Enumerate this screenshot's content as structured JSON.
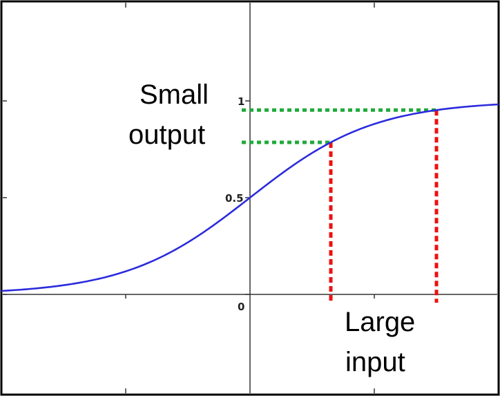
{
  "chart_data": {
    "type": "line",
    "title": "",
    "xlabel": "",
    "ylabel": "",
    "xlim": [
      -4,
      4
    ],
    "ylim": [
      -0.5,
      1.5
    ],
    "grid": false,
    "series": [
      {
        "function": "sigmoid",
        "color": "#2b2bdd",
        "x": [
          -4,
          -3,
          -2,
          -1,
          0,
          1,
          2,
          3,
          4
        ],
        "y": [
          0.018,
          0.047,
          0.119,
          0.269,
          0.5,
          0.731,
          0.881,
          0.953,
          0.982
        ]
      }
    ],
    "y_tick_labels": [
      "0",
      "0.5",
      "1"
    ],
    "y_tick_values": [
      0,
      0.5,
      1
    ],
    "annotations": [
      {
        "line1": "Small",
        "line2": "output"
      },
      {
        "line1": "Large",
        "line2": "input"
      }
    ],
    "guides": {
      "green_color": "#1faa3a",
      "red_color": "#ee1111",
      "x_values": [
        1.3,
        3.0
      ]
    }
  }
}
